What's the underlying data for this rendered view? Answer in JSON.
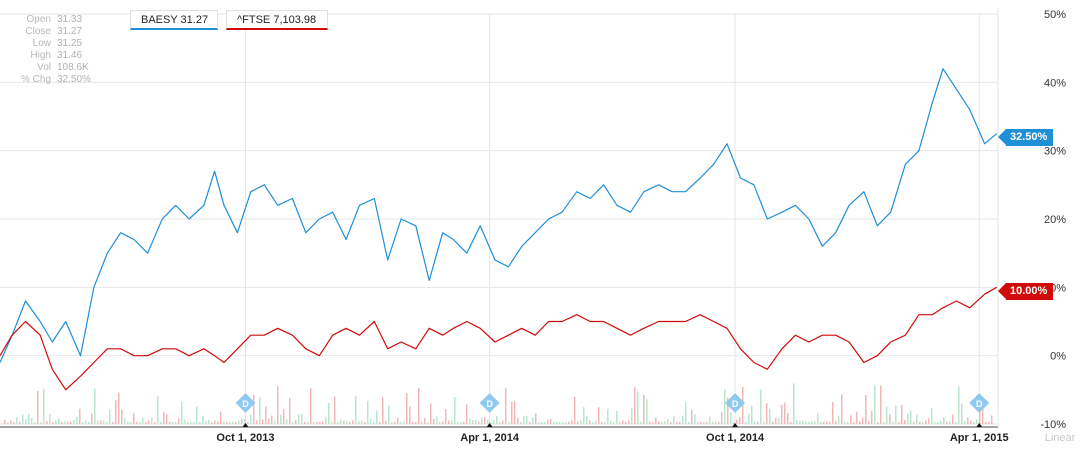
{
  "ohlc": [
    {
      "label": "Open",
      "value": "31.33"
    },
    {
      "label": "Close",
      "value": "31.27"
    },
    {
      "label": "Low",
      "value": "31.25"
    },
    {
      "label": "High",
      "value": "31.46"
    },
    {
      "label": "Vol",
      "value": "108.6K"
    },
    {
      "label": "% Chg",
      "value": "32.50%"
    }
  ],
  "legend": {
    "series_a": "BAESY 31.27",
    "series_b": "^FTSE 7,103.98"
  },
  "badges": {
    "series_a": "32.50%",
    "series_b": "10.00%"
  },
  "scale_label": "Linear",
  "chart_data": {
    "type": "line",
    "x_range": [
      "2013-04-01",
      "2015-04-15"
    ],
    "ylim": [
      -10,
      50
    ],
    "y_ticks": [
      50,
      40,
      30,
      20,
      10,
      0,
      -10
    ],
    "y_tick_labels": [
      "50%",
      "40%",
      "30%",
      "20%",
      "10%",
      "0%",
      "-10%"
    ],
    "x_ticks": [
      "2013-10-01",
      "2014-04-01",
      "2014-10-01",
      "2015-04-01"
    ],
    "x_tick_labels": [
      "Oct 1, 2013",
      "Apr 1, 2014",
      "Oct 1, 2014",
      "Apr 1, 2015"
    ],
    "grid": true,
    "dividend_dates": [
      "2013-10-01",
      "2014-04-01",
      "2014-10-01",
      "2015-04-01"
    ],
    "dividend_label": "D",
    "series": [
      {
        "name": "BAESY",
        "color": "#1f8fd6",
        "x": [
          "2013-04-01",
          "2013-04-10",
          "2013-04-20",
          "2013-05-01",
          "2013-05-10",
          "2013-05-20",
          "2013-05-31",
          "2013-06-10",
          "2013-06-20",
          "2013-06-30",
          "2013-07-10",
          "2013-07-20",
          "2013-07-31",
          "2013-08-10",
          "2013-08-20",
          "2013-08-31",
          "2013-09-08",
          "2013-09-15",
          "2013-09-25",
          "2013-10-05",
          "2013-10-15",
          "2013-10-25",
          "2013-11-05",
          "2013-11-15",
          "2013-11-25",
          "2013-12-05",
          "2013-12-15",
          "2013-12-25",
          "2014-01-05",
          "2014-01-15",
          "2014-01-25",
          "2014-02-05",
          "2014-02-15",
          "2014-02-25",
          "2014-03-05",
          "2014-03-15",
          "2014-03-25",
          "2014-04-05",
          "2014-04-15",
          "2014-04-25",
          "2014-05-05",
          "2014-05-15",
          "2014-05-25",
          "2014-06-05",
          "2014-06-15",
          "2014-06-25",
          "2014-07-05",
          "2014-07-15",
          "2014-07-25",
          "2014-08-05",
          "2014-08-15",
          "2014-08-25",
          "2014-09-05",
          "2014-09-15",
          "2014-09-25",
          "2014-10-05",
          "2014-10-15",
          "2014-10-25",
          "2014-11-05",
          "2014-11-15",
          "2014-11-25",
          "2014-12-05",
          "2014-12-15",
          "2014-12-25",
          "2015-01-05",
          "2015-01-15",
          "2015-01-25",
          "2015-02-05",
          "2015-02-15",
          "2015-02-25",
          "2015-03-05",
          "2015-03-15",
          "2015-03-25",
          "2015-04-05",
          "2015-04-14"
        ],
        "values": [
          -1,
          3,
          8,
          5,
          2,
          5,
          0,
          10,
          15,
          18,
          17,
          15,
          20,
          22,
          20,
          22,
          27,
          22,
          18,
          24,
          25,
          22,
          23,
          18,
          20,
          21,
          17,
          22,
          23,
          14,
          20,
          19,
          11,
          18,
          17,
          15,
          19,
          14,
          13,
          16,
          18,
          20,
          21,
          24,
          23,
          25,
          22,
          21,
          24,
          25,
          24,
          24,
          26,
          28,
          31,
          26,
          25,
          20,
          21,
          22,
          20,
          16,
          18,
          22,
          24,
          19,
          21,
          28,
          30,
          37,
          42,
          39,
          36,
          31,
          32.5
        ]
      },
      {
        "name": "^FTSE",
        "color": "#d10a0a",
        "x": [
          "2013-04-01",
          "2013-04-10",
          "2013-04-20",
          "2013-05-01",
          "2013-05-10",
          "2013-05-20",
          "2013-05-31",
          "2013-06-10",
          "2013-06-20",
          "2013-06-30",
          "2013-07-10",
          "2013-07-20",
          "2013-07-31",
          "2013-08-10",
          "2013-08-20",
          "2013-08-31",
          "2013-09-08",
          "2013-09-15",
          "2013-09-25",
          "2013-10-05",
          "2013-10-15",
          "2013-10-25",
          "2013-11-05",
          "2013-11-15",
          "2013-11-25",
          "2013-12-05",
          "2013-12-15",
          "2013-12-25",
          "2014-01-05",
          "2014-01-15",
          "2014-01-25",
          "2014-02-05",
          "2014-02-15",
          "2014-02-25",
          "2014-03-05",
          "2014-03-15",
          "2014-03-25",
          "2014-04-05",
          "2014-04-15",
          "2014-04-25",
          "2014-05-05",
          "2014-05-15",
          "2014-05-25",
          "2014-06-05",
          "2014-06-15",
          "2014-06-25",
          "2014-07-05",
          "2014-07-15",
          "2014-07-25",
          "2014-08-05",
          "2014-08-15",
          "2014-08-25",
          "2014-09-05",
          "2014-09-15",
          "2014-09-25",
          "2014-10-05",
          "2014-10-15",
          "2014-10-25",
          "2014-11-05",
          "2014-11-15",
          "2014-11-25",
          "2014-12-05",
          "2014-12-15",
          "2014-12-25",
          "2015-01-05",
          "2015-01-15",
          "2015-01-25",
          "2015-02-05",
          "2015-02-15",
          "2015-02-25",
          "2015-03-05",
          "2015-03-15",
          "2015-03-25",
          "2015-04-05",
          "2015-04-14"
        ],
        "values": [
          0,
          3,
          5,
          3,
          -2,
          -5,
          -3,
          -1,
          1,
          1,
          0,
          0,
          1,
          1,
          0,
          1,
          0,
          -1,
          1,
          3,
          3,
          4,
          3,
          1,
          0,
          3,
          4,
          3,
          5,
          1,
          2,
          1,
          4,
          3,
          4,
          5,
          4,
          2,
          3,
          4,
          3,
          5,
          5,
          6,
          5,
          5,
          4,
          3,
          4,
          5,
          5,
          5,
          6,
          5,
          4,
          1,
          -1,
          -2,
          1,
          3,
          2,
          3,
          3,
          2,
          -1,
          0,
          2,
          3,
          6,
          6,
          7,
          8,
          7,
          9,
          10
        ]
      }
    ]
  }
}
